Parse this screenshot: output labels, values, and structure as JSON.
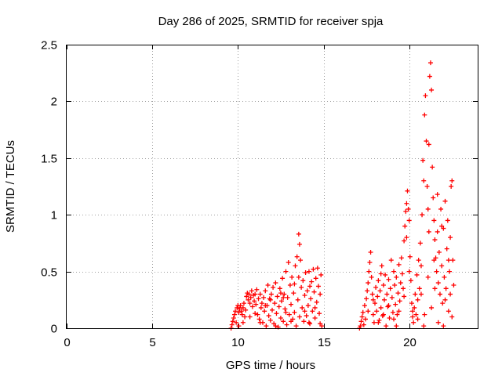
{
  "chart_data": {
    "type": "scatter",
    "title": "Day 286 of 2025, SRMTID for receiver spja",
    "xlabel": "GPS time / hours",
    "ylabel": "SRMTID / TECUs",
    "xlim": [
      0,
      24
    ],
    "ylim": [
      0,
      2.5
    ],
    "xticks": [
      0,
      5,
      10,
      15,
      20
    ],
    "yticks": [
      0,
      0.5,
      1,
      1.5,
      2,
      2.5
    ],
    "xtick_labels": [
      "0",
      "5",
      "10",
      "15",
      "20"
    ],
    "ytick_labels": [
      "0",
      "0.5",
      "1",
      "1.5",
      "2",
      "2.5"
    ],
    "grid": true,
    "marker": "+",
    "series": [
      {
        "name": "SRMTID",
        "color": "#ff0000",
        "points": [
          [
            9.6,
            0.0
          ],
          [
            9.65,
            0.03
          ],
          [
            9.7,
            0.06
          ],
          [
            9.75,
            0.09
          ],
          [
            9.8,
            0.12
          ],
          [
            9.85,
            0.15
          ],
          [
            9.9,
            0.05
          ],
          [
            9.95,
            0.18
          ],
          [
            10.0,
            0.2
          ],
          [
            10.05,
            0.14
          ],
          [
            10.1,
            0.17
          ],
          [
            10.15,
            0.2
          ],
          [
            10.2,
            0.15
          ],
          [
            10.25,
            0.12
          ],
          [
            10.3,
            0.18
          ],
          [
            10.35,
            0.22
          ],
          [
            10.4,
            0.1
          ],
          [
            10.45,
            0.16
          ],
          [
            10.5,
            0.28
          ],
          [
            10.55,
            0.31
          ],
          [
            10.6,
            0.25
          ],
          [
            10.65,
            0.3
          ],
          [
            10.7,
            0.22
          ],
          [
            10.75,
            0.27
          ],
          [
            10.8,
            0.33
          ],
          [
            10.85,
            0.19
          ],
          [
            10.9,
            0.29
          ],
          [
            10.95,
            0.24
          ],
          [
            11.0,
            0.3
          ],
          [
            11.05,
            0.21
          ],
          [
            11.1,
            0.34
          ],
          [
            11.15,
            0.12
          ],
          [
            11.2,
            0.26
          ],
          [
            11.25,
            0.08
          ],
          [
            11.3,
            0.3
          ],
          [
            11.35,
            0.18
          ],
          [
            11.4,
            0.22
          ],
          [
            11.45,
            0.05
          ],
          [
            11.5,
            0.27
          ],
          [
            11.55,
            0.15
          ],
          [
            11.6,
            0.33
          ],
          [
            11.65,
            0.02
          ],
          [
            11.7,
            0.2
          ],
          [
            11.75,
            0.38
          ],
          [
            11.8,
            0.11
          ],
          [
            11.85,
            0.26
          ],
          [
            11.9,
            0.07
          ],
          [
            11.95,
            0.3
          ],
          [
            12.0,
            0.16
          ],
          [
            12.05,
            0.36
          ],
          [
            12.1,
            0.04
          ],
          [
            12.15,
            0.22
          ],
          [
            12.2,
            0.4
          ],
          [
            12.25,
            0.13
          ],
          [
            12.3,
            0.28
          ],
          [
            12.35,
            0.01
          ],
          [
            12.4,
            0.19
          ],
          [
            12.45,
            0.35
          ],
          [
            12.5,
            0.09
          ],
          [
            12.55,
            0.24
          ],
          [
            12.6,
            0.44
          ],
          [
            12.65,
            0.06
          ],
          [
            12.7,
            0.3
          ],
          [
            12.75,
            0.17
          ],
          [
            12.8,
            0.5
          ],
          [
            12.85,
            0.03
          ],
          [
            12.9,
            0.27
          ],
          [
            12.95,
            0.58
          ],
          [
            13.0,
            0.12
          ],
          [
            13.05,
            0.38
          ],
          [
            13.1,
            0.21
          ],
          [
            13.15,
            0.45
          ],
          [
            13.2,
            0.08
          ],
          [
            13.25,
            0.31
          ],
          [
            13.3,
            0.14
          ],
          [
            13.35,
            0.55
          ],
          [
            13.4,
            0.02
          ],
          [
            13.45,
            0.63
          ],
          [
            13.5,
            0.25
          ],
          [
            13.55,
            0.83
          ],
          [
            13.6,
            0.74
          ],
          [
            13.65,
            0.6
          ],
          [
            13.7,
            0.36
          ],
          [
            13.75,
            0.18
          ],
          [
            13.8,
            0.42
          ],
          [
            13.85,
            0.06
          ],
          [
            13.9,
            0.29
          ],
          [
            13.95,
            0.49
          ],
          [
            14.0,
            0.11
          ],
          [
            14.05,
            0.33
          ],
          [
            14.1,
            0.2
          ],
          [
            14.15,
            0.5
          ],
          [
            14.2,
            0.04
          ],
          [
            14.25,
            0.26
          ],
          [
            14.3,
            0.41
          ],
          [
            14.35,
            0.15
          ],
          [
            14.4,
            0.52
          ],
          [
            14.45,
            0.32
          ],
          [
            14.5,
            0.09
          ],
          [
            14.55,
            0.44
          ],
          [
            14.6,
            0.23
          ],
          [
            14.65,
            0.53
          ],
          [
            14.7,
            0.37
          ],
          [
            14.75,
            0.13
          ],
          [
            14.8,
            0.3
          ],
          [
            14.85,
            0.47
          ],
          [
            14.9,
            0.02
          ],
          [
            10.05,
            0.02
          ],
          [
            10.3,
            0.05
          ],
          [
            10.7,
            0.1
          ],
          [
            11.0,
            0.13
          ],
          [
            11.3,
            0.05
          ],
          [
            11.6,
            0.2
          ],
          [
            11.9,
            0.25
          ],
          [
            12.2,
            0.02
          ],
          [
            12.5,
            0.31
          ],
          [
            12.8,
            0.14
          ],
          [
            13.1,
            0.06
          ],
          [
            13.3,
            0.39
          ],
          [
            13.6,
            0.1
          ],
          [
            13.9,
            0.15
          ],
          [
            14.2,
            0.37
          ],
          [
            14.5,
            0.18
          ],
          [
            14.8,
            0.04
          ],
          [
            12.65,
            0.27
          ],
          [
            13.55,
            0.45
          ],
          [
            14.15,
            0.05
          ],
          [
            17.1,
            0.0
          ],
          [
            17.15,
            0.02
          ],
          [
            17.2,
            0.06
          ],
          [
            17.25,
            0.1
          ],
          [
            17.3,
            0.14
          ],
          [
            17.35,
            0.03
          ],
          [
            17.4,
            0.2
          ],
          [
            17.45,
            0.08
          ],
          [
            17.5,
            0.26
          ],
          [
            17.55,
            0.33
          ],
          [
            17.6,
            0.4
          ],
          [
            17.65,
            0.5
          ],
          [
            17.7,
            0.58
          ],
          [
            17.75,
            0.67
          ],
          [
            17.8,
            0.45
          ],
          [
            17.85,
            0.3
          ],
          [
            17.9,
            0.12
          ],
          [
            17.95,
            0.05
          ],
          [
            18.0,
            0.22
          ],
          [
            18.05,
            0.36
          ],
          [
            18.1,
            0.15
          ],
          [
            18.15,
            0.28
          ],
          [
            18.2,
            0.42
          ],
          [
            18.25,
            0.07
          ],
          [
            18.3,
            0.33
          ],
          [
            18.35,
            0.18
          ],
          [
            18.4,
            0.55
          ],
          [
            18.45,
            0.11
          ],
          [
            18.5,
            0.38
          ],
          [
            18.55,
            0.25
          ],
          [
            18.6,
            0.47
          ],
          [
            18.65,
            0.02
          ],
          [
            18.7,
            0.3
          ],
          [
            18.75,
            0.19
          ],
          [
            18.8,
            0.43
          ],
          [
            18.85,
            0.09
          ],
          [
            18.9,
            0.35
          ],
          [
            18.95,
            0.6
          ],
          [
            19.0,
            0.27
          ],
          [
            19.05,
            0.14
          ],
          [
            19.1,
            0.5
          ],
          [
            19.15,
            0.38
          ],
          [
            19.2,
            0.21
          ],
          [
            19.25,
            0.45
          ],
          [
            19.3,
            0.12
          ],
          [
            19.35,
            0.31
          ],
          [
            19.4,
            0.56
          ],
          [
            19.45,
            0.24
          ],
          [
            19.5,
            0.4
          ],
          [
            19.55,
            0.62
          ],
          [
            19.6,
            0.48
          ],
          [
            19.65,
            0.35
          ],
          [
            19.7,
            0.77
          ],
          [
            19.75,
            0.9
          ],
          [
            19.8,
            1.03
          ],
          [
            19.85,
            1.1
          ],
          [
            19.9,
            1.21
          ],
          [
            19.95,
            1.05
          ],
          [
            20.0,
            0.95
          ],
          [
            20.05,
            0.63
          ],
          [
            20.1,
            0.42
          ],
          [
            20.15,
            0.22
          ],
          [
            20.2,
            0.1
          ],
          [
            20.25,
            0.05
          ],
          [
            20.3,
            0.18
          ],
          [
            20.35,
            0.3
          ],
          [
            20.4,
            0.12
          ],
          [
            20.45,
            0.47
          ],
          [
            20.5,
            0.25
          ],
          [
            20.55,
            0.6
          ],
          [
            20.6,
            0.35
          ],
          [
            20.65,
            0.75
          ],
          [
            20.7,
            0.55
          ],
          [
            20.75,
            1.0
          ],
          [
            20.8,
            1.48
          ],
          [
            20.85,
            1.3
          ],
          [
            20.9,
            1.88
          ],
          [
            20.95,
            2.05
          ],
          [
            21.0,
            1.65
          ],
          [
            21.05,
            1.25
          ],
          [
            21.1,
            1.05
          ],
          [
            21.15,
            1.62
          ],
          [
            21.2,
            2.22
          ],
          [
            21.25,
            2.34
          ],
          [
            21.3,
            2.1
          ],
          [
            21.35,
            1.42
          ],
          [
            21.4,
            1.15
          ],
          [
            21.45,
            0.95
          ],
          [
            21.5,
            0.78
          ],
          [
            21.55,
            0.62
          ],
          [
            21.6,
            0.5
          ],
          [
            21.65,
            0.85
          ],
          [
            21.7,
            0.4
          ],
          [
            21.75,
            0.67
          ],
          [
            21.8,
            0.3
          ],
          [
            21.85,
            1.05
          ],
          [
            21.9,
            0.55
          ],
          [
            21.95,
            0.22
          ],
          [
            22.0,
            0.88
          ],
          [
            22.05,
            0.45
          ],
          [
            22.1,
            1.12
          ],
          [
            22.15,
            0.35
          ],
          [
            22.2,
            0.7
          ],
          [
            22.25,
            0.95
          ],
          [
            22.3,
            0.15
          ],
          [
            22.35,
            0.5
          ],
          [
            22.4,
            0.8
          ],
          [
            22.45,
            1.25
          ],
          [
            22.5,
            1.3
          ],
          [
            22.55,
            0.6
          ],
          [
            22.6,
            0.38
          ],
          [
            17.6,
            0.15
          ],
          [
            17.9,
            0.25
          ],
          [
            18.2,
            0.05
          ],
          [
            18.5,
            0.12
          ],
          [
            18.8,
            0.2
          ],
          [
            19.1,
            0.08
          ],
          [
            19.4,
            0.15
          ],
          [
            19.7,
            0.28
          ],
          [
            20.0,
            0.5
          ],
          [
            20.2,
            0.15
          ],
          [
            20.5,
            0.08
          ],
          [
            20.7,
            0.3
          ],
          [
            20.9,
            0.12
          ],
          [
            21.1,
            0.45
          ],
          [
            21.3,
            0.18
          ],
          [
            21.5,
            0.35
          ],
          [
            21.7,
            0.05
          ],
          [
            21.9,
            0.9
          ],
          [
            22.1,
            0.25
          ],
          [
            22.3,
            0.6
          ],
          [
            22.5,
            0.1
          ],
          [
            20.85,
            0.02
          ],
          [
            21.45,
            0.6
          ],
          [
            22.0,
            0.02
          ],
          [
            18.35,
            0.48
          ],
          [
            19.25,
            0.02
          ],
          [
            19.85,
            0.8
          ],
          [
            21.15,
            0.85
          ],
          [
            21.65,
            1.18
          ],
          [
            22.4,
            0.3
          ]
        ]
      }
    ]
  }
}
